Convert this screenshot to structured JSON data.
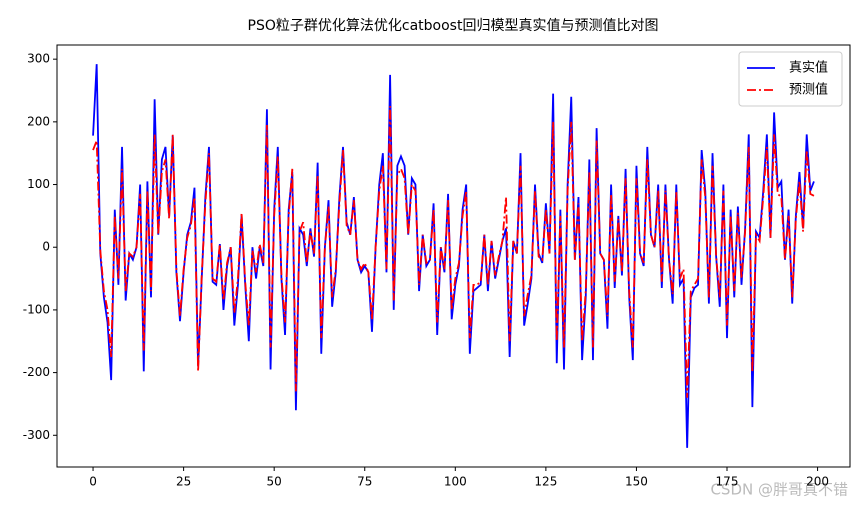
{
  "chart_data": {
    "type": "line",
    "title": "PSO粒子群优化算法优化catboost回归模型真实值与预测值比对图",
    "x": [
      0,
      1,
      2,
      3,
      4,
      5,
      6,
      7,
      8,
      9,
      10,
      11,
      12,
      13,
      14,
      15,
      16,
      17,
      18,
      19,
      20,
      21,
      22,
      23,
      24,
      25,
      26,
      27,
      28,
      29,
      30,
      31,
      32,
      33,
      34,
      35,
      36,
      37,
      38,
      39,
      40,
      41,
      42,
      43,
      44,
      45,
      46,
      47,
      48,
      49,
      50,
      51,
      52,
      53,
      54,
      55,
      56,
      57,
      58,
      59,
      60,
      61,
      62,
      63,
      64,
      65,
      66,
      67,
      68,
      69,
      70,
      71,
      72,
      73,
      74,
      75,
      76,
      77,
      78,
      79,
      80,
      81,
      82,
      83,
      84,
      85,
      86,
      87,
      88,
      89,
      90,
      91,
      92,
      93,
      94,
      95,
      96,
      97,
      98,
      99,
      100,
      101,
      102,
      103,
      104,
      105,
      106,
      107,
      108,
      109,
      110,
      111,
      112,
      113,
      114,
      115,
      116,
      117,
      118,
      119,
      120,
      121,
      122,
      123,
      124,
      125,
      126,
      127,
      128,
      129,
      130,
      131,
      132,
      133,
      134,
      135,
      136,
      137,
      138,
      139,
      140,
      141,
      142,
      143,
      144,
      145,
      146,
      147,
      148,
      149,
      150,
      151,
      152,
      153,
      154,
      155,
      156,
      157,
      158,
      159,
      160,
      161,
      162,
      163,
      164,
      165,
      166,
      167,
      168,
      169,
      170,
      171,
      172,
      173,
      174,
      175,
      176,
      177,
      178,
      179,
      180,
      181,
      182,
      183,
      184,
      185,
      186,
      187,
      188,
      189,
      190,
      191,
      192,
      193,
      194,
      195,
      196,
      197,
      198,
      199
    ],
    "series": [
      {
        "name": "真实值",
        "color": "#0000ff",
        "style": "solid",
        "values": [
          178,
          292,
          -10,
          -80,
          -120,
          -212,
          60,
          -60,
          160,
          -85,
          -10,
          -20,
          0,
          100,
          -198,
          105,
          -80,
          236,
          20,
          140,
          160,
          50,
          178,
          -40,
          -118,
          -40,
          20,
          40,
          95,
          -190,
          -50,
          80,
          160,
          -55,
          -60,
          5,
          -100,
          -30,
          0,
          -125,
          -60,
          50,
          -60,
          -150,
          0,
          -50,
          0,
          -30,
          220,
          -195,
          60,
          160,
          -50,
          -140,
          60,
          120,
          -260,
          30,
          20,
          -30,
          30,
          -15,
          135,
          -170,
          0,
          75,
          -95,
          -40,
          80,
          160,
          40,
          20,
          80,
          -20,
          -40,
          -30,
          -40,
          -135,
          0,
          100,
          150,
          -40,
          275,
          -100,
          130,
          145,
          130,
          20,
          110,
          100,
          -70,
          20,
          -30,
          -20,
          70,
          -140,
          0,
          -40,
          85,
          -115,
          -60,
          -30,
          60,
          100,
          -170,
          -70,
          -65,
          -60,
          20,
          -70,
          10,
          -50,
          -20,
          10,
          30,
          -175,
          10,
          -10,
          150,
          -125,
          -90,
          -50,
          100,
          -10,
          -25,
          70,
          -10,
          245,
          -185,
          60,
          -195,
          100,
          240,
          -20,
          80,
          -180,
          -80,
          140,
          -180,
          190,
          -10,
          -20,
          -130,
          100,
          -65,
          50,
          -45,
          125,
          -80,
          -180,
          130,
          -10,
          -30,
          160,
          20,
          0,
          100,
          -65,
          100,
          -20,
          -90,
          100,
          -60,
          -50,
          -320,
          -80,
          -65,
          -60,
          155,
          90,
          -90,
          150,
          -15,
          -95,
          100,
          -145,
          60,
          -80,
          65,
          -60,
          30,
          180,
          -255,
          25,
          15,
          90,
          180,
          15,
          215,
          95,
          105,
          -20,
          60,
          -90,
          50,
          120,
          30,
          180,
          90,
          105
        ]
      },
      {
        "name": "预测值",
        "color": "#ff0000",
        "style": "dashdot",
        "values": [
          155,
          170,
          -5,
          -70,
          -100,
          -175,
          50,
          -50,
          125,
          -70,
          -10,
          -15,
          0,
          85,
          -165,
          90,
          -70,
          180,
          20,
          120,
          140,
          45,
          180,
          -35,
          -110,
          -35,
          15,
          35,
          80,
          -198,
          -45,
          70,
          150,
          -50,
          -55,
          5,
          -85,
          -25,
          0,
          -105,
          -50,
          55,
          -55,
          -125,
          -5,
          -40,
          5,
          -25,
          195,
          -160,
          50,
          145,
          -45,
          -120,
          50,
          125,
          -230,
          25,
          40,
          -25,
          25,
          -10,
          115,
          -145,
          0,
          65,
          -80,
          -35,
          70,
          155,
          35,
          20,
          75,
          -20,
          -35,
          -25,
          -40,
          -115,
          0,
          90,
          130,
          -35,
          225,
          -85,
          115,
          125,
          110,
          20,
          100,
          90,
          -60,
          20,
          -25,
          -20,
          60,
          -120,
          0,
          -35,
          75,
          -100,
          -50,
          -25,
          50,
          90,
          -145,
          -60,
          -60,
          -55,
          20,
          -60,
          10,
          -45,
          -15,
          10,
          80,
          -150,
          10,
          -10,
          130,
          -110,
          -75,
          -45,
          90,
          -15,
          -20,
          60,
          -10,
          200,
          -150,
          50,
          -160,
          90,
          200,
          -20,
          70,
          -150,
          -70,
          120,
          -160,
          170,
          -10,
          -20,
          -110,
          85,
          -55,
          45,
          -40,
          110,
          -70,
          -160,
          110,
          -10,
          -25,
          140,
          20,
          0,
          90,
          -55,
          90,
          -20,
          -75,
          90,
          -50,
          -35,
          -240,
          -70,
          -60,
          -50,
          140,
          80,
          -80,
          130,
          -15,
          -80,
          90,
          -125,
          50,
          -70,
          55,
          -50,
          25,
          160,
          -200,
          20,
          10,
          80,
          160,
          15,
          180,
          85,
          80,
          -20,
          50,
          -80,
          45,
          105,
          25,
          155,
          85,
          82
        ]
      }
    ],
    "xlim": [
      -9.95,
      208.95
    ],
    "ylim": [
      -350.6,
      322.6
    ],
    "xticks": [
      0,
      25,
      50,
      75,
      100,
      125,
      150,
      175,
      200
    ],
    "yticks": [
      -300,
      -200,
      -100,
      0,
      100,
      200,
      300
    ],
    "legend": "upper right",
    "grid": false,
    "watermark": "CSDN @胖哥真不错"
  }
}
